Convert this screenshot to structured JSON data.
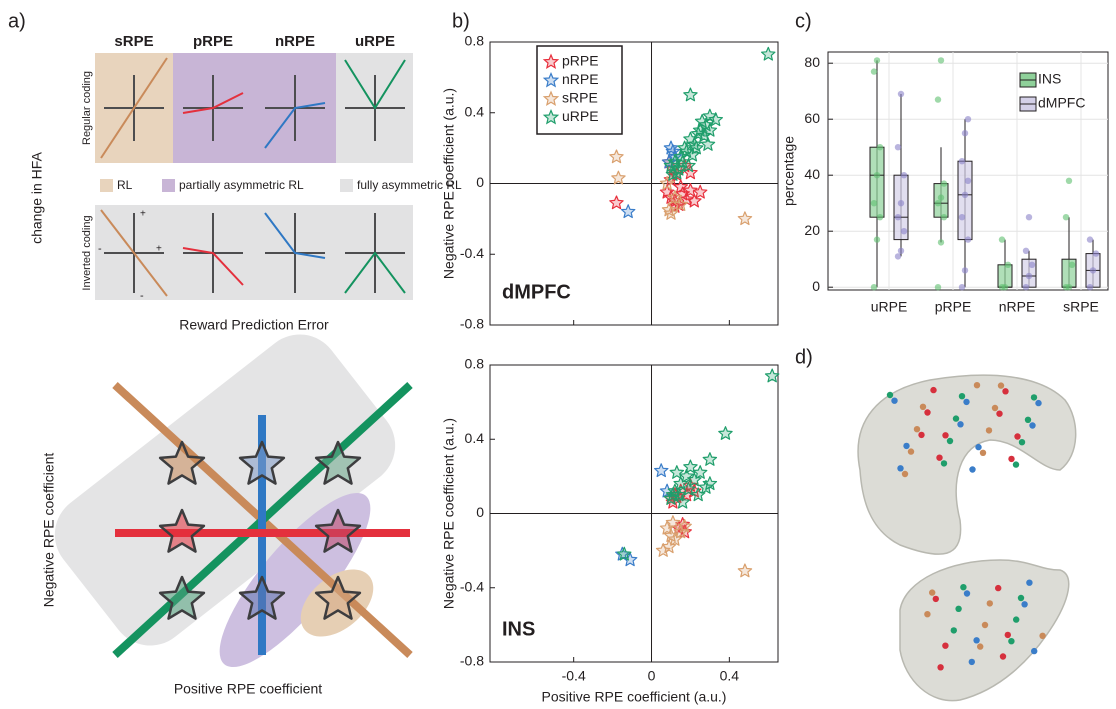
{
  "panel_labels": [
    "a)",
    "b)",
    "c)",
    "d)"
  ],
  "schematic": {
    "columns": [
      "sRPE",
      "pRPE",
      "nRPE",
      "uRPE"
    ],
    "ylabel": "change in HFA",
    "rows": [
      "Regular coding",
      "Inverted coding"
    ],
    "legend": [
      {
        "name": "RL",
        "color": "#e8d4bd"
      },
      {
        "name": "partially asymmetric RL",
        "color": "#c8b5d6"
      },
      {
        "name": "fully asymmetric RL",
        "color": "#e2e2e3"
      }
    ],
    "axis_signs": [
      "+",
      "-",
      "+",
      "-"
    ],
    "xlabel": "Reward Prediction Error",
    "coefficient_xlabel": "Positive RPE coefficient",
    "coefficient_ylabel": "Negative RPE coefficient"
  },
  "chart_data": [
    {
      "type": "scatter",
      "title": "dMPFC",
      "ylabel": "Negative RPE coefficient (a.u.)",
      "xlim": [
        -0.83,
        0.65
      ],
      "ylim": [
        -0.8,
        0.8
      ],
      "xticks": [
        -0.4,
        0,
        0.4
      ],
      "yticks": [
        0.8,
        0.4,
        0,
        -0.4,
        -0.8
      ],
      "xtick_labels": false,
      "legend": "upper left",
      "series": [
        {
          "name": "pRPE",
          "color": "#e8303d",
          "x": [
            -0.18,
            0.08,
            0.1,
            0.12,
            0.14,
            0.16,
            0.18,
            0.2,
            0.22,
            0.25,
            0.13,
            0.11,
            0.17,
            0.09,
            0.2,
            0.15,
            0.12,
            0.1
          ],
          "values": [
            -0.11,
            -0.05,
            -0.08,
            -0.1,
            -0.12,
            -0.06,
            -0.09,
            -0.04,
            -0.1,
            -0.05,
            0.05,
            0.08,
            0.1,
            0.12,
            0.06,
            -0.02,
            -0.13,
            0.02
          ]
        },
        {
          "name": "nRPE",
          "color": "#3a7dc9",
          "x": [
            -0.12,
            0.1,
            0.12,
            0.09,
            0.11
          ],
          "values": [
            -0.16,
            0.2,
            0.15,
            0.12,
            0.18
          ]
        },
        {
          "name": "sRPE",
          "color": "#d9a06e",
          "x": [
            -0.18,
            -0.17,
            0.48,
            0.09,
            0.1,
            0.12,
            0.15,
            0.08
          ],
          "values": [
            0.15,
            0.03,
            -0.2,
            -0.15,
            -0.17,
            -0.08,
            -0.12,
            0.0
          ]
        },
        {
          "name": "uRPE",
          "color": "#1f9e6b",
          "x": [
            0.6,
            0.2,
            0.3,
            0.33,
            0.28,
            0.25,
            0.22,
            0.18,
            0.15,
            0.12,
            0.1,
            0.14,
            0.17,
            0.2,
            0.24,
            0.27,
            0.3,
            0.29,
            0.21,
            0.16,
            0.13,
            0.11,
            0.19,
            0.23,
            0.26
          ],
          "values": [
            0.73,
            0.5,
            0.38,
            0.36,
            0.33,
            0.3,
            0.22,
            0.18,
            0.15,
            0.12,
            0.1,
            0.08,
            0.2,
            0.25,
            0.28,
            0.27,
            0.3,
            0.22,
            0.16,
            0.12,
            0.06,
            0.05,
            0.1,
            0.2,
            0.35
          ]
        }
      ]
    },
    {
      "type": "scatter",
      "title": "INS",
      "xlabel": "Positive RPE coefficient (a.u.)",
      "ylabel": "Negative RPE coefficient (a.u.)",
      "xlim": [
        -0.83,
        0.65
      ],
      "ylim": [
        -0.8,
        0.8
      ],
      "xticks": [
        -0.4,
        0,
        0.4
      ],
      "yticks": [
        0.8,
        0.4,
        0,
        -0.4,
        -0.8
      ],
      "series": [
        {
          "color": "#e8303d",
          "x": [
            0.1,
            0.12,
            0.15,
            0.18,
            0.2,
            0.14,
            0.17,
            0.11,
            0.22,
            0.16,
            0.13
          ],
          "values": [
            0.08,
            0.1,
            0.12,
            0.1,
            0.15,
            -0.08,
            -0.1,
            0.06,
            0.12,
            -0.06,
            0.09
          ]
        },
        {
          "color": "#3a7dc9",
          "x": [
            -0.11,
            -0.15,
            0.05,
            0.08
          ],
          "values": [
            -0.25,
            -0.22,
            0.23,
            0.12
          ]
        },
        {
          "color": "#d9a06e",
          "x": [
            0.08,
            0.1,
            0.12,
            0.15,
            0.17,
            0.09,
            0.06,
            0.48,
            0.11
          ],
          "values": [
            -0.08,
            -0.12,
            -0.14,
            -0.1,
            -0.07,
            -0.18,
            -0.2,
            -0.31,
            -0.05
          ]
        },
        {
          "color": "#1f9e6b",
          "x": [
            0.62,
            0.38,
            0.3,
            0.25,
            0.2,
            0.18,
            0.15,
            0.12,
            0.1,
            0.14,
            0.22,
            0.28,
            0.16,
            0.19,
            0.11,
            0.13,
            -0.14,
            0.24,
            0.3
          ],
          "values": [
            0.74,
            0.43,
            0.29,
            0.22,
            0.25,
            0.2,
            0.16,
            0.12,
            0.08,
            0.1,
            0.18,
            0.14,
            0.06,
            0.13,
            0.1,
            0.22,
            -0.22,
            0.1,
            0.16
          ]
        }
      ]
    },
    {
      "type": "box",
      "ylabel": "percentage",
      "categories": [
        "uRPE",
        "pRPE",
        "nRPE",
        "sRPE"
      ],
      "ylim": [
        -1,
        84
      ],
      "yticks": [
        0,
        20,
        40,
        60,
        80
      ],
      "grid": true,
      "legend": "upper right",
      "series": [
        {
          "name": "INS",
          "color": "#8fd19a",
          "point_color": "#5fbf6f",
          "min": [
            0,
            16,
            0,
            0
          ],
          "q1": [
            25,
            25,
            0,
            0
          ],
          "median": [
            40,
            30,
            0,
            0
          ],
          "q3": [
            50,
            37,
            8,
            10
          ],
          "max": [
            81,
            50,
            17,
            25
          ],
          "points": [
            [
              0,
              17,
              25,
              30,
              40,
              50,
              77,
              81
            ],
            [
              0,
              16,
              25,
              30,
              32,
              37,
              67,
              81
            ],
            [
              0,
              0,
              8,
              17
            ],
            [
              0,
              0,
              8,
              25,
              38
            ]
          ]
        },
        {
          "name": "dMPFC",
          "color": "#d4d0e8",
          "point_color": "#8a82c8",
          "min": [
            11,
            0,
            0,
            0
          ],
          "q1": [
            17,
            17,
            0,
            0
          ],
          "median": [
            25,
            33,
            4,
            6
          ],
          "q3": [
            40,
            45,
            10,
            12
          ],
          "max": [
            69,
            60,
            13,
            17
          ],
          "points": [
            [
              11,
              13,
              20,
              25,
              30,
              40,
              50,
              69
            ],
            [
              0,
              6,
              17,
              25,
              33,
              38,
              45,
              55,
              60
            ],
            [
              0,
              4,
              8,
              13,
              25
            ],
            [
              0,
              6,
              12,
              17
            ]
          ]
        }
      ]
    }
  ]
}
